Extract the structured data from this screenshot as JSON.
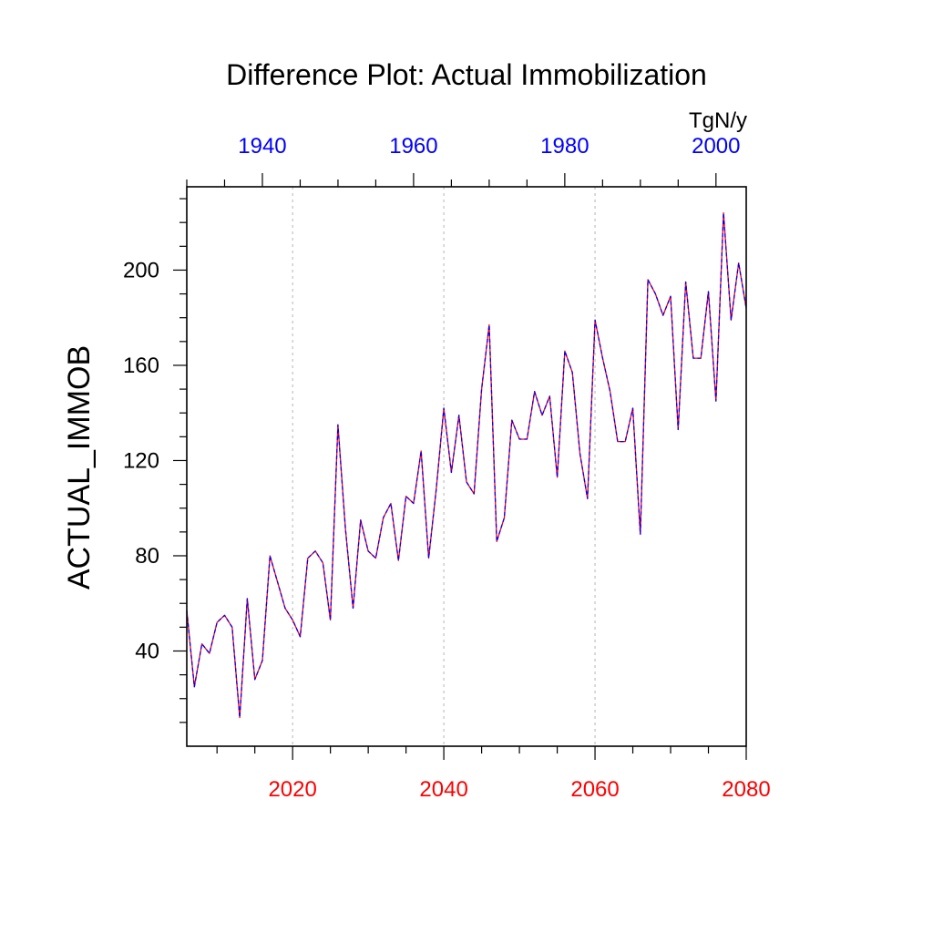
{
  "chart_data": {
    "type": "line",
    "title": "Difference Plot: Actual Immobilization",
    "ylabel": "ACTUAL_IMMOB",
    "units": "TgN/y",
    "x_bottom": {
      "range": [
        2006,
        2080
      ],
      "ticks": [
        2020,
        2040,
        2060,
        2080
      ],
      "tick_labels": [
        "2020",
        "2040",
        "2060",
        "2080"
      ],
      "color": "#ff0000"
    },
    "x_top": {
      "range": [
        1930,
        2004
      ],
      "ticks": [
        1940,
        1960,
        1980,
        2000
      ],
      "tick_labels": [
        "1940",
        "1960",
        "1980",
        "2000"
      ],
      "color": "#0000ff"
    },
    "ylim": [
      0,
      235
    ],
    "y_ticks": [
      40,
      80,
      120,
      160,
      200
    ],
    "y_tick_labels": [
      "40",
      "80",
      "120",
      "160",
      "200"
    ],
    "grid": "dotted vertical at major x ticks",
    "series": [
      {
        "name": "difference",
        "line_colors": [
          "#ff0000",
          "#0000ff"
        ],
        "x": [
          2006,
          2007,
          2008,
          2009,
          2010,
          2011,
          2012,
          2013,
          2014,
          2015,
          2016,
          2017,
          2018,
          2019,
          2020,
          2021,
          2022,
          2023,
          2024,
          2025,
          2026,
          2027,
          2028,
          2029,
          2030,
          2031,
          2032,
          2033,
          2034,
          2035,
          2036,
          2037,
          2038,
          2039,
          2040,
          2041,
          2042,
          2043,
          2044,
          2045,
          2046,
          2047,
          2048,
          2049,
          2050,
          2051,
          2052,
          2053,
          2054,
          2055,
          2056,
          2057,
          2058,
          2059,
          2060,
          2061,
          2062,
          2063,
          2064,
          2065,
          2066,
          2067,
          2068,
          2069,
          2070,
          2071,
          2072,
          2073,
          2074,
          2075,
          2076,
          2077,
          2078,
          2079,
          2080
        ],
        "values": [
          57,
          25,
          43,
          39,
          52,
          55,
          50,
          12,
          62,
          28,
          36,
          80,
          69,
          58,
          53,
          46,
          79,
          82,
          77,
          53,
          135,
          91,
          58,
          95,
          82,
          79,
          96,
          102,
          78,
          105,
          102,
          124,
          79,
          108,
          142,
          115,
          139,
          111,
          106,
          150,
          177,
          86,
          96,
          137,
          129,
          129,
          149,
          139,
          147,
          113,
          166,
          157,
          123,
          104,
          179,
          163,
          149,
          128,
          128,
          142,
          89,
          196,
          190,
          181,
          189,
          133,
          195,
          163,
          163,
          191,
          145,
          224,
          179,
          203,
          184
        ]
      }
    ]
  }
}
